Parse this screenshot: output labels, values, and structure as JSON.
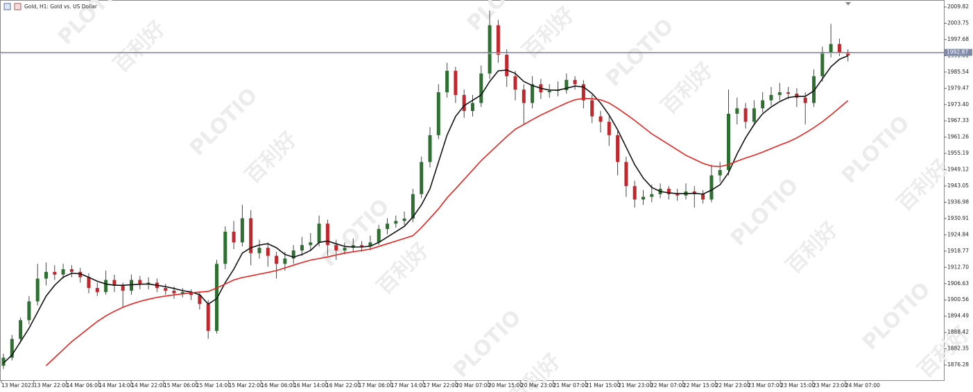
{
  "chart_data": {
    "type": "candlestick",
    "title": "Gold, H1: Gold vs. US Dollar",
    "watermarks": [
      "PLOTIO",
      "百利好"
    ],
    "up_color": "#2e7031",
    "down_color": "#c0282d",
    "wick_color": "#444444",
    "current_price": 1992.87,
    "current_price_color": "#d84a4a",
    "ylim": [
      1870.6,
      2011.9
    ],
    "yticks": [
      2009.82,
      2003.75,
      1997.68,
      1991.61,
      1985.54,
      1979.47,
      {
        "value": 1973.4,
        "label": "1973.40"
      },
      1967.33,
      1961.26,
      1955.19,
      1949.12,
      1943.05,
      1936.98,
      1930.91,
      1924.84,
      1918.77,
      {
        "value": 1912.7,
        "label": "1912.70"
      },
      1906.63,
      1900.56,
      1894.49,
      1888.42,
      1882.35,
      1876.28
    ],
    "x_labels": [
      "13 Mar 2023",
      "13 Mar 22:00",
      "14 Mar 06:00",
      "14 Mar 14:00",
      "14 Mar 22:00",
      "15 Mar 06:00",
      "15 Mar 14:00",
      "15 Mar 22:00",
      "16 Mar 06:00",
      "16 Mar 14:00",
      "16 Mar 22:00",
      "17 Mar 06:00",
      "17 Mar 14:00",
      "17 Mar 22:00",
      "20 Mar 07:00",
      "20 Mar 15:00",
      "20 Mar 23:00",
      "21 Mar 07:00",
      "21 Mar 15:00",
      "21 Mar 23:00",
      "22 Mar 07:00",
      "22 Mar 15:00",
      "22 Mar 23:00",
      "23 Mar 07:00",
      "23 Mar 15:00",
      "23 Mar 23:00",
      "24 Mar 07:00"
    ],
    "ohlc": [
      [
        1876,
        1880.5,
        1874.8,
        1879
      ],
      [
        1879,
        1887.5,
        1878,
        1886
      ],
      [
        1886,
        1894,
        1884.5,
        1893
      ],
      [
        1893,
        1902,
        1891.5,
        1900
      ],
      [
        1900,
        1914,
        1898.5,
        1908.5
      ],
      [
        1908.5,
        1914.5,
        1906,
        1911
      ],
      [
        1911,
        1913.5,
        1908,
        1910
      ],
      [
        1910,
        1914,
        1908.5,
        1912
      ],
      [
        1912,
        1913.5,
        1909,
        1911
      ],
      [
        1911,
        1912.5,
        1907,
        1909
      ],
      [
        1909,
        1910.5,
        1903,
        1905
      ],
      [
        1905,
        1907,
        1902,
        1903.5
      ],
      [
        1903.5,
        1911.5,
        1902.5,
        1908
      ],
      [
        1908,
        1910,
        1903.5,
        1906
      ],
      [
        1906,
        1907,
        1898,
        1904
      ],
      [
        1904,
        1910,
        1902.5,
        1908
      ],
      [
        1908,
        1909.5,
        1904.5,
        1906.3
      ],
      [
        1906.3,
        1909,
        1904.5,
        1907
      ],
      [
        1907,
        1908.5,
        1903.5,
        1905
      ],
      [
        1905,
        1906.5,
        1902.5,
        1904
      ],
      [
        1904,
        1905.5,
        1901,
        1903
      ],
      [
        1903,
        1905,
        1901.5,
        1903.5
      ],
      [
        1903.5,
        1904.5,
        1900.5,
        1902.4
      ],
      [
        1902.4,
        1903.5,
        1897,
        1899
      ],
      [
        1899,
        1900.5,
        1886,
        1889
      ],
      [
        1889,
        1915.5,
        1888,
        1914
      ],
      [
        1914,
        1928,
        1912,
        1926
      ],
      [
        1926,
        1930,
        1919.5,
        1922
      ],
      [
        1922,
        1936,
        1920.5,
        1931
      ],
      [
        1931,
        1934,
        1913.5,
        1918
      ],
      [
        1918,
        1923,
        1916,
        1920
      ],
      [
        1920,
        1922,
        1913,
        1917
      ],
      [
        1917,
        1918.5,
        1908.5,
        1914
      ],
      [
        1914,
        1918.5,
        1911.5,
        1916
      ],
      [
        1916,
        1921,
        1914,
        1919
      ],
      [
        1919,
        1924,
        1917,
        1921
      ],
      [
        1921,
        1925.5,
        1919,
        1922
      ],
      [
        1922,
        1932,
        1920.5,
        1929
      ],
      [
        1929,
        1930.5,
        1917,
        1921
      ],
      [
        1921,
        1923,
        1915.5,
        1919
      ],
      [
        1919,
        1922,
        1917.5,
        1920
      ],
      [
        1920,
        1923.5,
        1918.5,
        1921
      ],
      [
        1921,
        1922.5,
        1918.5,
        1920.5
      ],
      [
        1920.5,
        1924.5,
        1919,
        1922
      ],
      [
        1922,
        1928.5,
        1921,
        1927
      ],
      [
        1927,
        1931,
        1925,
        1929
      ],
      [
        1929,
        1932,
        1927.5,
        1930
      ],
      [
        1930,
        1933.5,
        1928.5,
        1930.9
      ],
      [
        1930.9,
        1942,
        1929.5,
        1940
      ],
      [
        1940,
        1954,
        1938.5,
        1952
      ],
      [
        1952,
        1965,
        1950,
        1962
      ],
      [
        1962,
        1981,
        1960.5,
        1978
      ],
      [
        1978,
        1989,
        1976,
        1986
      ],
      [
        1986,
        1987.5,
        1974,
        1977
      ],
      [
        1977,
        1979,
        1968.5,
        1971
      ],
      [
        1971,
        1977,
        1969,
        1974
      ],
      [
        1974,
        1988,
        1972.5,
        1985
      ],
      [
        1985,
        2008.5,
        1983,
        2003
      ],
      [
        2003,
        2005,
        1989,
        1992
      ],
      [
        1992,
        1994,
        1980,
        1984
      ],
      [
        1984,
        1986,
        1975,
        1979
      ],
      [
        1979,
        1981,
        1966,
        1974
      ],
      [
        1974,
        1984,
        1972,
        1981
      ],
      [
        1981,
        1983,
        1975.5,
        1978
      ],
      [
        1978,
        1981,
        1976,
        1978.5
      ],
      [
        1978.5,
        1982,
        1976.5,
        1978.8
      ],
      [
        1978.8,
        1985,
        1977.5,
        1982.6
      ],
      [
        1982.6,
        1984,
        1979,
        1981
      ],
      [
        1981,
        1982.5,
        1972,
        1975
      ],
      [
        1975,
        1977,
        1966.5,
        1969
      ],
      [
        1969,
        1971,
        1963,
        1967
      ],
      [
        1967,
        1969,
        1958,
        1962
      ],
      [
        1962,
        1963.5,
        1947,
        1952
      ],
      [
        1952,
        1954,
        1939,
        1943
      ],
      [
        1943,
        1945,
        1935,
        1938
      ],
      [
        1938,
        1941.5,
        1936,
        1939
      ],
      [
        1939,
        1943.5,
        1937,
        1940
      ],
      [
        1940,
        1944,
        1938.5,
        1942
      ],
      [
        1942,
        1943,
        1938,
        1940
      ],
      [
        1940,
        1942,
        1937.5,
        1939.5
      ],
      [
        1939.5,
        1944,
        1938,
        1941
      ],
      [
        1941,
        1943,
        1935,
        1940
      ],
      [
        1940,
        1941.5,
        1936.5,
        1938
      ],
      [
        1938,
        1951,
        1937,
        1947
      ],
      [
        1947,
        1952,
        1944.5,
        1949
      ],
      [
        1949,
        1979,
        1947,
        1970
      ],
      [
        1970,
        1976,
        1966,
        1972
      ],
      [
        1972,
        1974,
        1964.5,
        1967
      ],
      [
        1967,
        1975,
        1965.5,
        1972
      ],
      [
        1972,
        1978,
        1970.5,
        1975
      ],
      [
        1975,
        1980,
        1973,
        1977
      ],
      [
        1977,
        1981.5,
        1975,
        1978
      ],
      [
        1978,
        1980,
        1975.5,
        1977.5
      ],
      [
        1977.5,
        1979.5,
        1972.5,
        1976
      ],
      [
        1976,
        1978,
        1966,
        1974
      ],
      [
        1974,
        1986.5,
        1972.5,
        1984
      ],
      [
        1984,
        1995,
        1982,
        1993
      ],
      [
        1993,
        2003.5,
        1991,
        1996
      ],
      [
        1996,
        1998,
        1991.5,
        1993
      ],
      [
        1993,
        1994,
        1989.5,
        1991.7
      ]
    ],
    "series": [
      {
        "color": "#111111",
        "values": [
          1877,
          1880,
          1885,
          1890,
          1896,
          1902,
          1906,
          1909,
          1910.5,
          1910.3,
          1909,
          1907.5,
          1906.5,
          1906,
          1906,
          1906.2,
          1906.4,
          1906.5,
          1906,
          1905.5,
          1904.8,
          1904,
          1903.5,
          1902.5,
          1899,
          1901,
          1907,
          1912,
          1918,
          1920,
          1921,
          1921.5,
          1920,
          1917.5,
          1916.5,
          1917.5,
          1919,
          1922,
          1922.5,
          1921.5,
          1920.5,
          1920.3,
          1920.3,
          1920.6,
          1922,
          1924,
          1926,
          1928,
          1931.5,
          1936,
          1942,
          1952,
          1962,
          1969,
          1973,
          1975,
          1977,
          1982,
          1986,
          1986.3,
          1985,
          1982,
          1980.5,
          1979.5,
          1978.8,
          1978.8,
          1979.5,
          1980.3,
          1980,
          1977.5,
          1974,
          1969.5,
          1964,
          1957.5,
          1951,
          1946,
          1942.5,
          1941,
          1940.5,
          1940.2,
          1940.2,
          1940.3,
          1940,
          1941.5,
          1943.5,
          1948,
          1955,
          1961,
          1966,
          1970,
          1972.5,
          1974.5,
          1976,
          1976.5,
          1976.5,
          1978.5,
          1983,
          1987.5,
          1990.3,
          1991.6
        ]
      },
      {
        "color": "#e8231f",
        "values": [
          null,
          null,
          null,
          null,
          null,
          1876,
          1879,
          1882,
          1885,
          1887.5,
          1890,
          1892.5,
          1894.6,
          1896.3,
          1897.8,
          1899,
          1900,
          1900.8,
          1901.5,
          1902,
          1902.4,
          1902.8,
          1903.2,
          1903.5,
          1903.7,
          1905,
          1906.5,
          1908,
          1908.9,
          1909.5,
          1910.2,
          1910.8,
          1911.5,
          1912.5,
          1913.5,
          1914.5,
          1915.4,
          1916,
          1916.6,
          1917.3,
          1918,
          1918.5,
          1919,
          1919.5,
          1920.5,
          1921.5,
          1922.5,
          1923.5,
          1924.5,
          1927.5,
          1931,
          1934.5,
          1938.6,
          1942,
          1945.5,
          1949,
          1952.5,
          1955.5,
          1958.5,
          1961.5,
          1964.2,
          1966,
          1967.8,
          1969.5,
          1971,
          1972.5,
          1974,
          1975.2,
          1975.7,
          1975.6,
          1975.2,
          1974,
          1972,
          1969.8,
          1967.5,
          1965,
          1962.5,
          1960.5,
          1958.5,
          1956.5,
          1954.5,
          1953,
          1951.5,
          1950.5,
          1950.3,
          1951,
          1952.3,
          1953.5,
          1954.5,
          1955.7,
          1957,
          1958.3,
          1959.5,
          1961,
          1962.8,
          1964.8,
          1967,
          1969.5,
          1972.2,
          1974.9
        ]
      }
    ]
  }
}
